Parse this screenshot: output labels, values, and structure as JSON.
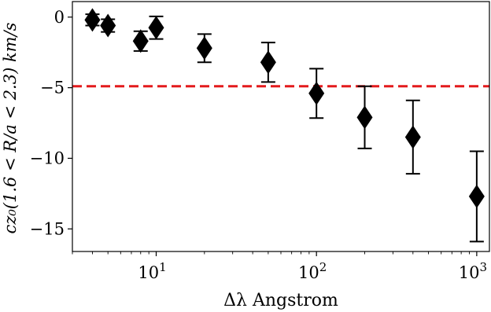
{
  "chart_data": {
    "type": "scatter",
    "xlabel": "Δλ Angstrom",
    "ylabel": "cz₀(1.6 < R/a < 2.3) km/s",
    "x_scale": "log",
    "xlim": [
      3.0,
      1200
    ],
    "ylim": [
      -16.6,
      1.1
    ],
    "x_ticks": [
      {
        "value": 10,
        "base": "10",
        "exp": "1"
      },
      {
        "value": 100,
        "base": "10",
        "exp": "2"
      },
      {
        "value": 1000,
        "base": "10",
        "exp": "3"
      }
    ],
    "y_ticks": [
      {
        "value": 0,
        "label": "0"
      },
      {
        "value": -5,
        "label": "−5"
      },
      {
        "value": -10,
        "label": "−10"
      },
      {
        "value": -15,
        "label": "−15"
      }
    ],
    "reference_line": {
      "y": -4.9,
      "color": "#e31a1c",
      "style": "dashed"
    },
    "points": [
      {
        "x": 4,
        "y": -0.2,
        "err": 0.4
      },
      {
        "x": 5,
        "y": -0.6,
        "err": 0.45
      },
      {
        "x": 8,
        "y": -1.7,
        "err": 0.7
      },
      {
        "x": 10,
        "y": -0.75,
        "err": 0.8
      },
      {
        "x": 20,
        "y": -2.2,
        "err": 1.0
      },
      {
        "x": 50,
        "y": -3.2,
        "err": 1.4
      },
      {
        "x": 100,
        "y": -5.4,
        "err": 1.75
      },
      {
        "x": 200,
        "y": -7.1,
        "err": 2.2
      },
      {
        "x": 400,
        "y": -8.5,
        "err": 2.6
      },
      {
        "x": 1000,
        "y": -12.7,
        "err": 3.2
      }
    ],
    "marker_color": "#000000",
    "grid": false
  }
}
